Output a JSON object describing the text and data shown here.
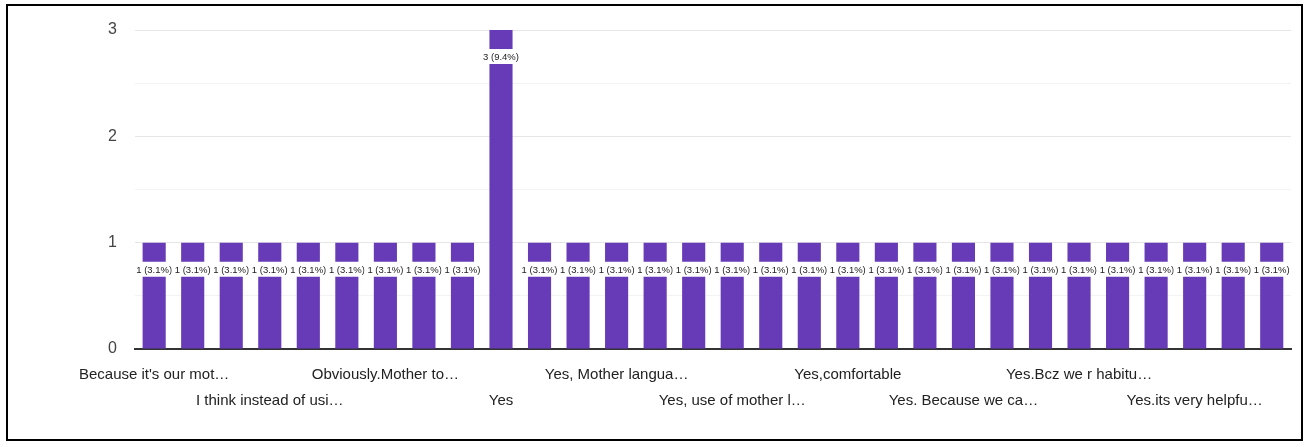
{
  "chart_data": {
    "type": "bar",
    "categories": [
      "Because it's our mot…",
      null,
      null,
      "I think instead of usi…",
      null,
      null,
      "Obviously.Mother to…",
      null,
      null,
      "Yes",
      null,
      null,
      "Yes, Mother langua…",
      null,
      null,
      "Yes, use of mother l…",
      null,
      null,
      "Yes,comfortable",
      null,
      null,
      "Yes. Because we ca…",
      null,
      null,
      "Yes.Bcz we r habitu…",
      null,
      null,
      "Yes.its very helpfu…",
      null,
      null
    ],
    "values": [
      1,
      1,
      1,
      1,
      1,
      1,
      1,
      1,
      1,
      3,
      1,
      1,
      1,
      1,
      1,
      1,
      1,
      1,
      1,
      1,
      1,
      1,
      1,
      1,
      1,
      1,
      1,
      1,
      1,
      1
    ],
    "value_labels": [
      "1 (3.1%)",
      "1 (3.1%)",
      "1 (3.1%)",
      "1 (3.1%)",
      "1 (3.1%)",
      "1 (3.1%)",
      "1 (3.1%)",
      "1 (3.1%)",
      "1 (3.1%)",
      "3 (9.4%)",
      "1 (3.1%)",
      "1 (3.1%)",
      "1 (3.1%)",
      "1 (3.1%)",
      "1 (3.1%)",
      "1 (3.1%)",
      "1 (3.1%)",
      "1 (3.1%)",
      "1 (3.1%)",
      "1 (3.1%)",
      "1 (3.1%)",
      "1 (3.1%)",
      "1 (3.1%)",
      "1 (3.1%)",
      "1 (3.1%)",
      "1 (3.1%)",
      "1 (3.1%)",
      "1 (3.1%)",
      "1 (3.1%)",
      "1 (3.1%)"
    ],
    "color": "#673ab7",
    "ylim": [
      0,
      3
    ],
    "yticks": [
      0,
      {
        "value": 0.5,
        "label": null
      },
      1,
      {
        "value": 1.5,
        "label": null
      },
      2,
      {
        "value": 2.5,
        "label": null
      },
      3
    ],
    "grid": "y",
    "legend": false
  }
}
